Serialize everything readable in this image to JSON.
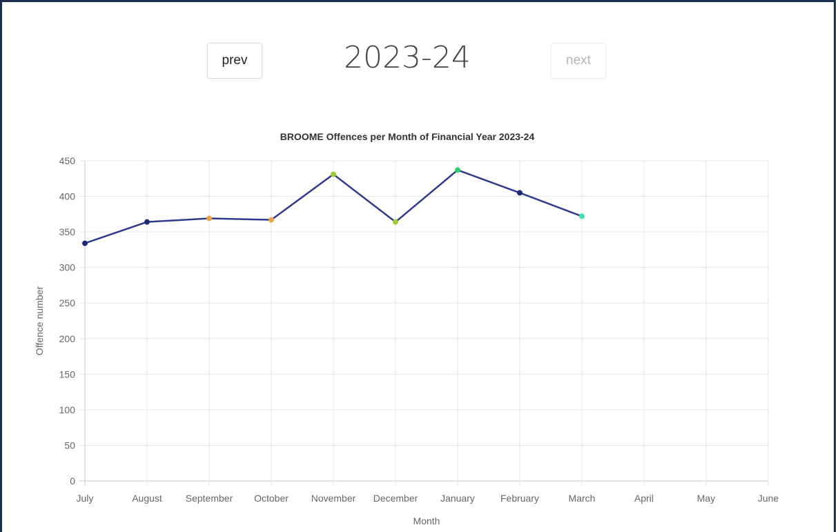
{
  "nav": {
    "prev_label": "prev",
    "next_label": "next",
    "year_label": "2023-24"
  },
  "colors": {
    "line": "#2d3a8c",
    "grid": "#e6e6e6",
    "axis": "#c8c8c8"
  },
  "chart_data": {
    "type": "line",
    "title": "BROOME Offences per Month of Financial Year 2023-24",
    "xlabel": "Month",
    "ylabel": "Offence number",
    "categories": [
      "July",
      "August",
      "September",
      "October",
      "November",
      "December",
      "January",
      "February",
      "March",
      "April",
      "May",
      "June"
    ],
    "ylim": [
      0,
      450
    ],
    "yticks": [
      0,
      50,
      100,
      150,
      200,
      250,
      300,
      350,
      400,
      450
    ],
    "grid": true,
    "series": [
      {
        "values": [
          334,
          364,
          369,
          367,
          431,
          364,
          437,
          405,
          372,
          null,
          null,
          null
        ],
        "point_colors": [
          "#1e2a78",
          "#1e2a78",
          "#f0a04b",
          "#f0a04b",
          "#9acd32",
          "#9acd32",
          "#2ecc71",
          "#1e2a78",
          "#40e0b0",
          null,
          null,
          null
        ]
      }
    ]
  }
}
